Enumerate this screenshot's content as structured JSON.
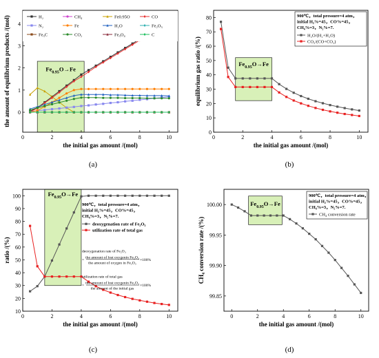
{
  "colors": {
    "H2": "#333333",
    "CH4": "#cc44cc",
    "Fe095O": "#c8a000",
    "CO": "#e83030",
    "N2": "#8888ee",
    "Fe": "#ff7f00",
    "H2O": "#2060c0",
    "Fe2O3": "#30b0b0",
    "Fe3C": "#8a4a1a",
    "CO2": "#2a8a2a",
    "Fe3O4": "#8a2a3a",
    "C": "#20c060",
    "zone": "#d8f0b8"
  },
  "chart_data": [
    {
      "id": "a",
      "type": "line",
      "sublabel": "(a)",
      "xlabel": "the initial gas amount /(mol)",
      "ylabel": "the amount of equilibrium products /(mol)",
      "xlim": [
        0,
        10.6
      ],
      "ylim": [
        -0.9,
        4.6
      ],
      "xticks": [
        0,
        2,
        4,
        6,
        8,
        10
      ],
      "yticks": [
        0,
        1,
        2,
        3,
        4
      ],
      "zone": [
        1,
        4.2
      ],
      "zone_y": [
        -0.9,
        2.3
      ],
      "zone_label": {
        "main": "Fe",
        "sub": "0.95",
        "rest": "O→Fe"
      },
      "x": [
        0.5,
        1.0,
        1.5,
        2.0,
        2.5,
        3.0,
        3.5,
        4.0,
        4.5,
        5.0,
        5.5,
        6.0,
        6.5,
        7.0,
        7.5,
        8.0,
        8.5,
        9.0,
        9.5,
        10.0
      ],
      "series": [
        {
          "name": "H₂",
          "key": "H2",
          "values": [
            0.05,
            0.2,
            0.45,
            0.7,
            0.95,
            1.2,
            1.45,
            1.7,
            1.9,
            2.1,
            2.3,
            2.5,
            2.7,
            2.9,
            3.1,
            3.3,
            3.5,
            3.7,
            3.95,
            4.2
          ]
        },
        {
          "name": "CH₄",
          "key": "CH4",
          "values": [
            0.0,
            0.0,
            0.0,
            0.0,
            0.0,
            0.0,
            0.0,
            0.0,
            0.0,
            0.0,
            0.0,
            0.0,
            0.0,
            0.0,
            0.0,
            0.0,
            0.0,
            0.0,
            0.0,
            0.0
          ]
        },
        {
          "name": "Fe0.95O",
          "key": "Fe095O",
          "values": [
            0.8,
            1.1,
            0.95,
            0.7,
            0.45,
            0.2,
            0.0,
            0.0,
            0.0,
            0.0,
            0.0,
            0.0,
            0.0,
            0.0,
            0.0,
            0.0,
            0.0,
            0.0,
            0.0,
            0.0
          ]
        },
        {
          "name": "CO",
          "key": "CO",
          "values": [
            0.02,
            0.18,
            0.42,
            0.65,
            0.9,
            1.15,
            1.4,
            1.6,
            1.82,
            2.05,
            2.25,
            2.45,
            2.65,
            2.85,
            3.05,
            3.25,
            3.45,
            3.65,
            3.88,
            4.12
          ]
        },
        {
          "name": "N₂",
          "key": "N2",
          "values": [
            0.03,
            0.07,
            0.1,
            0.14,
            0.17,
            0.21,
            0.24,
            0.28,
            0.31,
            0.35,
            0.38,
            0.42,
            0.45,
            0.49,
            0.52,
            0.56,
            0.59,
            0.63,
            0.66,
            0.7
          ]
        },
        {
          "name": "Fe",
          "key": "Fe",
          "values": [
            0.0,
            0.08,
            0.25,
            0.45,
            0.65,
            0.85,
            1.0,
            1.05,
            1.05,
            1.05,
            1.05,
            1.05,
            1.05,
            1.05,
            1.05,
            1.05,
            1.05,
            1.05,
            1.05,
            1.05
          ]
        },
        {
          "name": "H₂O",
          "key": "H2O",
          "values": [
            0.15,
            0.25,
            0.35,
            0.45,
            0.55,
            0.65,
            0.75,
            0.8,
            0.8,
            0.8,
            0.8,
            0.78,
            0.78,
            0.77,
            0.76,
            0.76,
            0.75,
            0.75,
            0.75,
            0.74
          ]
        },
        {
          "name": "Fe₂O₃",
          "key": "Fe2O3",
          "values": [
            0.0,
            0.0,
            0.0,
            0.0,
            0.0,
            0.0,
            0.0,
            0.0,
            0.0,
            0.0,
            0.0,
            0.0,
            0.0,
            0.0,
            0.0,
            0.0,
            0.0,
            0.0,
            0.0,
            0.0
          ]
        },
        {
          "name": "Fe₃C",
          "key": "Fe3C",
          "values": [
            0.0,
            0.0,
            0.0,
            0.0,
            0.0,
            0.0,
            0.0,
            0.0,
            0.0,
            0.0,
            0.0,
            0.0,
            0.0,
            0.0,
            0.0,
            0.0,
            0.0,
            0.0,
            0.0,
            0.0
          ]
        },
        {
          "name": "CO₂",
          "key": "CO2",
          "values": [
            0.1,
            0.2,
            0.28,
            0.36,
            0.44,
            0.52,
            0.6,
            0.66,
            0.66,
            0.66,
            0.65,
            0.65,
            0.65,
            0.64,
            0.64,
            0.64,
            0.63,
            0.63,
            0.63,
            0.63
          ]
        },
        {
          "name": "Fe₃O₄",
          "key": "Fe3O4",
          "values": [
            0.0,
            0.0,
            0.0,
            0.0,
            0.0,
            0.0,
            0.0,
            0.0,
            0.0,
            0.0,
            0.0,
            0.0,
            0.0,
            0.0,
            0.0,
            0.0,
            0.0,
            0.0,
            0.0,
            0.0
          ]
        },
        {
          "name": "C",
          "key": "C",
          "values": [
            0.0,
            0.0,
            0.0,
            0.0,
            0.0,
            0.0,
            0.0,
            0.0,
            0.0,
            0.0,
            0.0,
            0.0,
            0.0,
            0.0,
            0.0,
            0.0,
            0.0,
            0.0,
            0.0,
            0.0
          ]
        }
      ]
    },
    {
      "id": "b",
      "type": "line",
      "sublabel": "(b)",
      "xlabel": "the initial gas amount /(mol)",
      "ylabel": "equilibrium gas ratio /(%)",
      "xlim": [
        0,
        10.6
      ],
      "ylim": [
        0,
        85
      ],
      "xticks": [
        0,
        2,
        4,
        6,
        8,
        10
      ],
      "yticks": [
        0,
        10,
        20,
        30,
        40,
        50,
        60,
        70,
        80
      ],
      "zone": [
        1.5,
        4
      ],
      "zone_y": [
        22,
        52
      ],
      "zone_label": {
        "main": "Fe",
        "sub": "0.95",
        "rest": "O→Fe"
      },
      "conditions": [
        "900℃，total pressure=4 atm，",
        "initial H₂%=45，CO%=45，",
        "CH₄%=3，N₂%=7."
      ],
      "x": [
        0.5,
        1.0,
        1.5,
        2.0,
        2.5,
        3.0,
        3.5,
        4.0,
        4.5,
        5.0,
        5.5,
        6.0,
        6.5,
        7.0,
        7.5,
        8.0,
        8.5,
        9.0,
        9.5,
        10.0
      ],
      "series": [
        {
          "name": "H₂O/(H₂+H₂O)",
          "color": "#555555",
          "values": [
            77,
            45,
            37.5,
            37.5,
            37.5,
            37.5,
            37.5,
            37.5,
            33.5,
            30.2,
            27.5,
            25.2,
            23.3,
            21.6,
            20.2,
            18.9,
            17.8,
            16.8,
            15.9,
            15.1
          ]
        },
        {
          "name": "CO₂/(CO+CO₂)",
          "color": "#e82020",
          "values": [
            72,
            38.5,
            31.5,
            31.5,
            31.5,
            31.5,
            31.5,
            31.5,
            27.7,
            24.6,
            22.1,
            20.1,
            18.4,
            16.9,
            15.6,
            14.5,
            13.6,
            12.7,
            12.0,
            11.3
          ]
        }
      ]
    },
    {
      "id": "c",
      "type": "line",
      "sublabel": "(c)",
      "xlabel": "the initial gas amount /(mol)",
      "ylabel": "ratio /(%)",
      "xlim": [
        0,
        10.6
      ],
      "ylim": [
        10,
        105
      ],
      "xticks": [
        0,
        2,
        4,
        6,
        8,
        10
      ],
      "yticks": [
        10,
        20,
        30,
        40,
        50,
        60,
        70,
        80,
        90,
        100
      ],
      "zone": [
        1.5,
        4
      ],
      "zone_y": [
        30,
        105
      ],
      "zone_label": {
        "main": "Fe",
        "sub": "0.95",
        "rest": "O→Fe"
      },
      "conditions": [
        "900℃，total pressure=4 atm，",
        "initial H₂%=45，CO%=45，",
        "CH₄%=3，N₂%=7."
      ],
      "x": [
        0.5,
        1.0,
        1.5,
        2.0,
        2.5,
        3.0,
        3.5,
        4.0,
        4.5,
        5.0,
        5.5,
        6.0,
        6.5,
        7.0,
        7.5,
        8.0,
        8.5,
        9.0,
        9.5,
        10.0
      ],
      "series": [
        {
          "name": "deoxygenation rate of Fe₂O₃",
          "color": "#555555",
          "values": [
            25.5,
            29.5,
            37,
            49.5,
            62,
            74.5,
            87,
            99.5,
            100,
            100,
            100,
            100,
            100,
            100,
            100,
            100,
            100,
            100,
            100,
            100
          ]
        },
        {
          "name": "utilization rate of total gas",
          "color": "#e82020",
          "values": [
            76.5,
            45,
            37,
            37,
            37,
            37,
            37,
            37,
            33,
            29.5,
            26.7,
            24.5,
            22.6,
            21,
            19.6,
            18.4,
            17.4,
            16.4,
            15.6,
            14.9
          ]
        }
      ],
      "formulas": [
        {
          "title": "deoxygenation rate of Fe₂O₃",
          "num": "the amount of lost oxygenin Fe₂O₃",
          "den": "the amount of oxygen in Fe₂O₃",
          "suffix": "×100%"
        },
        {
          "title": "utilization rate of total gas",
          "num": "the amount of lost oxygenin Fe₂O₃",
          "den": "the amount of the initial gas",
          "suffix": "×100%"
        }
      ]
    },
    {
      "id": "d",
      "type": "line",
      "sublabel": "(d)",
      "xlabel": "the initial gas amount /(mol)",
      "ylabel": "CH₄ conversion rate /(%)",
      "xlim": [
        -0.6,
        10.6
      ],
      "ylim": [
        99.825,
        100.025
      ],
      "xticks": [
        0,
        2,
        4,
        6,
        8,
        10
      ],
      "yticks": [
        99.85,
        99.9,
        99.95,
        100.0
      ],
      "ytick_labels": [
        "99.85",
        "99.90",
        "99.95",
        "100.00"
      ],
      "zone": [
        1.3,
        3.9
      ],
      "zone_y": [
        99.967,
        100.014
      ],
      "zone_label": {
        "main": "Fe",
        "sub": "0.95",
        "rest": "O→Fe"
      },
      "conditions": [
        "900℃，total pressure=4 atm，",
        "initial H₂%=45，CO%=45，",
        "CH₄%=3，N₂%=7."
      ],
      "x": [
        0.0,
        0.5,
        1.0,
        1.5,
        2.0,
        2.5,
        3.0,
        3.5,
        4.0,
        4.5,
        5.0,
        5.5,
        6.0,
        6.5,
        7.0,
        7.5,
        8.0,
        8.5,
        9.0,
        9.5,
        10.0
      ],
      "series": [
        {
          "name": "CH₄ conversion rate",
          "color": "#555555",
          "values": [
            100.0,
            99.995,
            99.989,
            99.982,
            99.982,
            99.982,
            99.982,
            99.982,
            99.982,
            99.976,
            99.969,
            99.961,
            99.952,
            99.943,
            99.932,
            99.921,
            99.909,
            99.896,
            99.883,
            99.869,
            99.855
          ]
        }
      ]
    }
  ]
}
